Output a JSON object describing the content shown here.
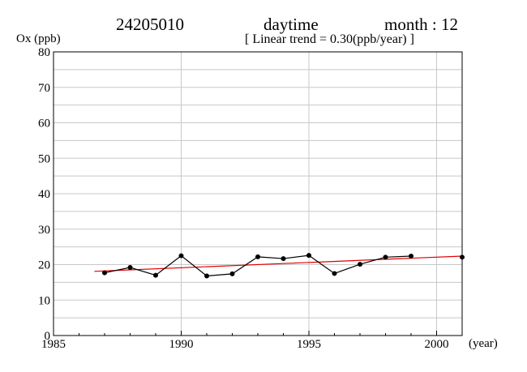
{
  "header": {
    "station": "24205010",
    "period": "daytime",
    "month": "month : 12",
    "trend": "[ Linear trend = 0.30(ppb/year) ]"
  },
  "chart_data": {
    "type": "line",
    "ylabel": "Ox (ppb)",
    "xlabel": "(year)",
    "xlim": [
      1985,
      2001
    ],
    "ylim": [
      0,
      80
    ],
    "x_ticks": [
      1985,
      1990,
      1995,
      2000
    ],
    "y_ticks": [
      0,
      10,
      20,
      30,
      40,
      50,
      60,
      70,
      80
    ],
    "grid": true,
    "series": [
      {
        "x": [
          1987,
          1988,
          1989,
          1990,
          1991,
          1992,
          1993,
          1994,
          1995,
          1996,
          1997,
          1998,
          1999,
          2001
        ],
        "y": [
          17.7,
          19.2,
          17.0,
          22.5,
          16.8,
          17.4,
          22.2,
          21.7,
          22.6,
          17.5,
          20.1,
          22.1,
          22.4,
          22.1
        ],
        "color": "#000000"
      }
    ],
    "trend_line": {
      "x": [
        1986.6,
        2001
      ],
      "y": [
        18.1,
        22.4
      ],
      "color": "#e00000"
    }
  }
}
